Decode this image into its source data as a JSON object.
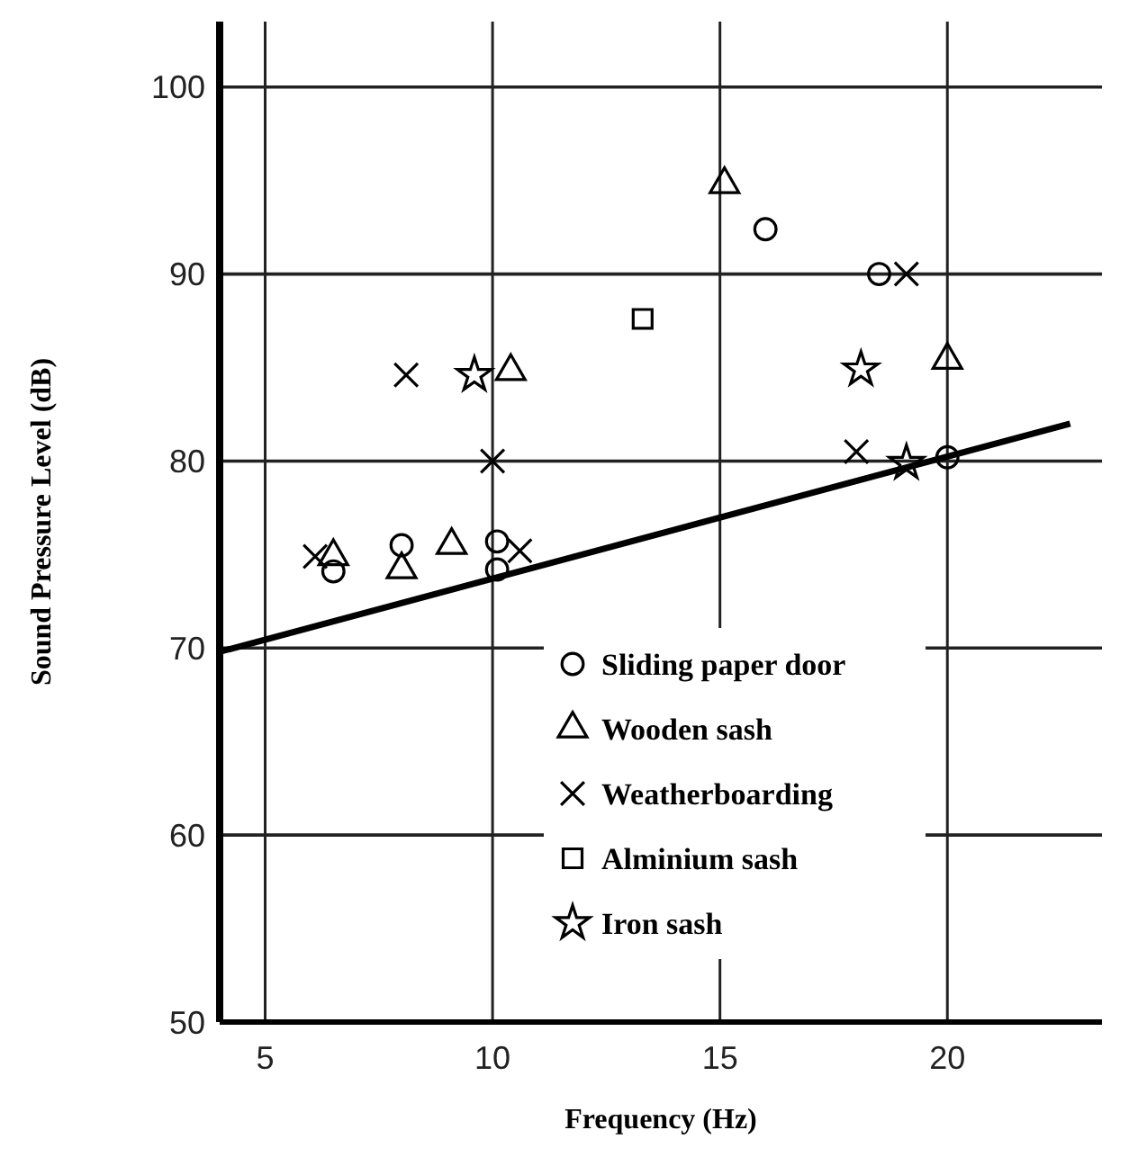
{
  "chart_data": {
    "type": "scatter",
    "xlabel": "Frequency (Hz)",
    "ylabel": "Sound Pressure Level (dB)",
    "xlim": [
      4,
      23.4
    ],
    "ylim": [
      50,
      103.5
    ],
    "xticks": [
      5,
      10,
      15,
      20
    ],
    "yticks": [
      50,
      60,
      70,
      80,
      90,
      100
    ],
    "grid": true,
    "legend": "bottom right",
    "series": [
      {
        "name": "Sliding paper door",
        "color": "#000000",
        "marker": "circle",
        "x": [
          6.5,
          8.0,
          10.1,
          10.1,
          16.0,
          18.5,
          20.0
        ],
        "values": [
          74.1,
          75.5,
          75.7,
          74.2,
          92.4,
          90.0,
          80.2
        ]
      },
      {
        "name": "Wooden sash",
        "color": "#000000",
        "marker": "triangle",
        "x": [
          6.5,
          8.0,
          9.1,
          10.4,
          15.1,
          20.0
        ],
        "values": [
          74.9,
          74.2,
          75.5,
          84.8,
          94.8,
          85.4
        ]
      },
      {
        "name": "Weatherboarding",
        "color": "#000000",
        "marker": "cross",
        "x": [
          6.1,
          10.6,
          10.0,
          8.1,
          19.1,
          18.0
        ],
        "values": [
          74.9,
          75.2,
          80.0,
          84.6,
          90.0,
          80.5
        ]
      },
      {
        "name": "Alminium sash",
        "color": "#000000",
        "marker": "square",
        "x": [
          13.3
        ],
        "values": [
          87.6
        ]
      },
      {
        "name": "Iron sash",
        "color": "#000000",
        "marker": "star",
        "x": [
          9.6,
          18.1,
          19.1
        ],
        "values": [
          84.6,
          84.9,
          79.9
        ]
      },
      {
        "type": "line",
        "color": "#000000",
        "marker": "none",
        "line_style": "solid",
        "x": [
          4,
          22.7
        ],
        "values": [
          69.8,
          82.0
        ]
      }
    ]
  }
}
